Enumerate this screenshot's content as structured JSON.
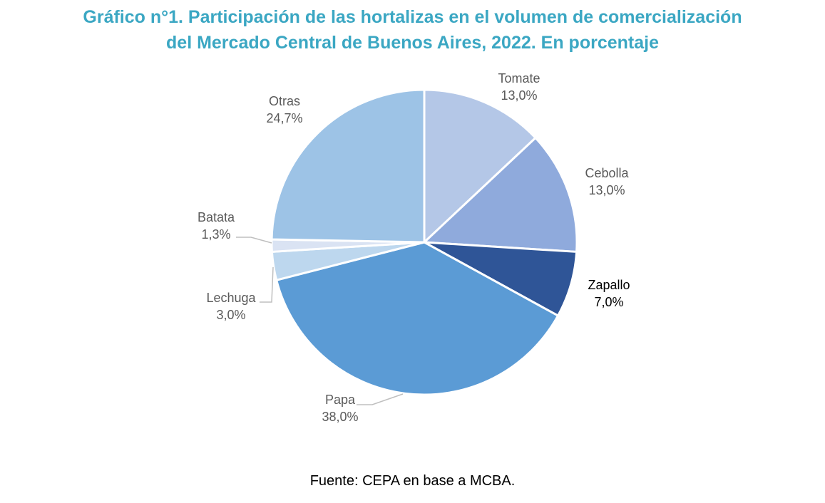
{
  "chart_data": {
    "type": "pie",
    "title_line1": "Gráfico n°1. Participación de las hortalizas en el volumen de comercialización",
    "title_line2": "del Mercado Central de Buenos Aires, 2022. En porcentaje",
    "unit": "%",
    "start_angle_deg": 0,
    "direction": "clockwise",
    "slices": [
      {
        "label": "Tomate",
        "value": 13.0,
        "value_label": "13,0%",
        "color": "#b4c7e7"
      },
      {
        "label": "Cebolla",
        "value": 13.0,
        "value_label": "13,0%",
        "color": "#8faadc"
      },
      {
        "label": "Zapallo",
        "value": 7.0,
        "value_label": "7,0%",
        "color": "#2f5597"
      },
      {
        "label": "Papa",
        "value": 38.0,
        "value_label": "38,0%",
        "color": "#5b9bd5"
      },
      {
        "label": "Lechuga",
        "value": 3.0,
        "value_label": "3,0%",
        "color": "#bdd7ee"
      },
      {
        "label": "Batata",
        "value": 1.3,
        "value_label": "1,3%",
        "color": "#dae3f3"
      },
      {
        "label": "Otras",
        "value": 24.7,
        "value_label": "24,7%",
        "color": "#9dc3e6"
      }
    ]
  },
  "source": "Fuente: CEPA en base a MCBA."
}
